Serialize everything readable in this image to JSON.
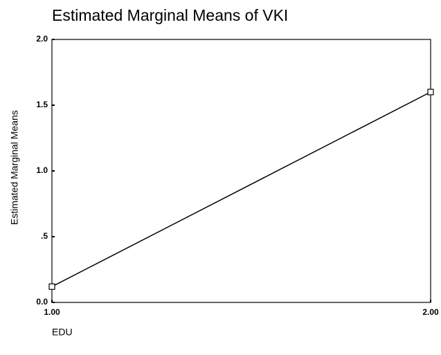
{
  "chart_data": {
    "type": "line",
    "title": "Estimated Marginal Means of VKI",
    "x_label": "EDU",
    "y_label": "Estimated Marginal Means",
    "categories": [
      "1.00",
      "2.00"
    ],
    "values": [
      0.12,
      1.6
    ],
    "color": "#000000",
    "ylim": [
      0,
      2
    ],
    "yticks": [
      {
        "value": 0,
        "label": "0.0"
      },
      {
        "value": 0.5,
        "label": ".5"
      },
      {
        "value": 1,
        "label": "1.0"
      },
      1.5,
      {
        "value": 2,
        "label": "2.0"
      }
    ],
    "grid": false
  }
}
